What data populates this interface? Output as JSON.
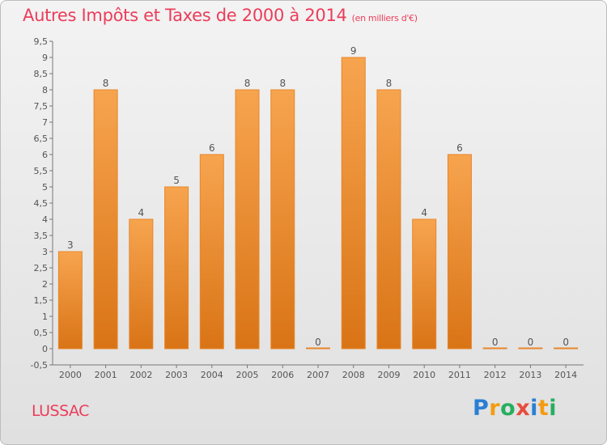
{
  "header": {
    "title": "Autres Impôts et Taxes de 2000 à 2014",
    "unit": "(en milliers d'€)"
  },
  "footer": {
    "commune": "LUSSAC",
    "logo_text": "Proxiti",
    "logo_letters": [
      {
        "ch": "P",
        "color": "#2a7fd4"
      },
      {
        "ch": "r",
        "color": "#f39c12"
      },
      {
        "ch": "o",
        "color": "#27ae60"
      },
      {
        "ch": "x",
        "color": "#e74c3c"
      },
      {
        "ch": "i",
        "color": "#2a7fd4"
      },
      {
        "ch": "t",
        "color": "#f39c12"
      },
      {
        "ch": "i",
        "color": "#27ae60"
      }
    ]
  },
  "colors": {
    "title": "#ec3d5a",
    "bar_light": "#f7a44f",
    "bar_dark": "#d97416",
    "bar_stroke": "#e8862a"
  },
  "chart_data": {
    "type": "bar",
    "title": "Autres Impôts et Taxes de 2000 à 2014",
    "categories": [
      "2000",
      "2001",
      "2002",
      "2003",
      "2004",
      "2005",
      "2006",
      "2007",
      "2008",
      "2009",
      "2010",
      "2011",
      "2012",
      "2013",
      "2014"
    ],
    "values": [
      3,
      8,
      4,
      5,
      6,
      8,
      8,
      0,
      9,
      8,
      4,
      6,
      0,
      0,
      0
    ],
    "ylim": [
      -0.5,
      9.5
    ],
    "yticks": [
      "-0,5",
      "0",
      "0,5",
      "1",
      "1,5",
      "2",
      "2,5",
      "3",
      "3,5",
      "4",
      "4,5",
      "5",
      "5,5",
      "6",
      "6,5",
      "7",
      "7,5",
      "8",
      "8,5",
      "9",
      "9,5"
    ],
    "ytick_values": [
      -0.5,
      0,
      0.5,
      1,
      1.5,
      2,
      2.5,
      3,
      3.5,
      4,
      4.5,
      5,
      5.5,
      6,
      6.5,
      7,
      7.5,
      8,
      8.5,
      9,
      9.5
    ],
    "grid": false,
    "xlabel": "",
    "ylabel": ""
  }
}
